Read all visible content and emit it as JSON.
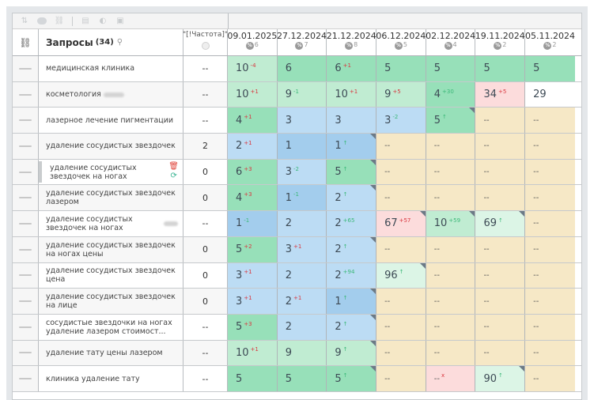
{
  "toolbar": {
    "icons": [
      "sort-icon",
      "toggle-icon",
      "link-icon",
      "calculator-icon",
      "contrast-icon",
      "image-icon"
    ]
  },
  "header": {
    "link_icon": "link-icon",
    "query_title": "Запросы",
    "query_count": "(34)",
    "search_icon": "search-icon",
    "freq_label": "\"[!Частота]\"",
    "freq_icon": "globe-icon",
    "dates": [
      {
        "date": "09.01.2025",
        "pct": "6"
      },
      {
        "date": "27.12.2024",
        "pct": "7"
      },
      {
        "date": "21.12.2024",
        "pct": "8"
      },
      {
        "date": "06.12.2024",
        "pct": "5"
      },
      {
        "date": "02.12.2024",
        "pct": "4"
      },
      {
        "date": "19.11.2024",
        "pct": "2"
      },
      {
        "date": "05.11.2024",
        "pct": "2"
      }
    ]
  },
  "rows": [
    {
      "query": "медицинская клиника",
      "freq": "--",
      "cells": [
        {
          "v": "10",
          "s": "-4",
          "t": "red",
          "bg": "g2"
        },
        {
          "v": "6",
          "s": "",
          "t": "",
          "bg": "g1"
        },
        {
          "v": "6",
          "s": "+1",
          "t": "red",
          "bg": "g1"
        },
        {
          "v": "5",
          "s": "",
          "t": "",
          "bg": "g1"
        },
        {
          "v": "5",
          "s": "",
          "t": "",
          "bg": "g1"
        },
        {
          "v": "5",
          "s": "",
          "t": "",
          "bg": "g1"
        },
        {
          "v": "5",
          "s": "",
          "t": "",
          "bg": "g1"
        }
      ]
    },
    {
      "query": "косметология",
      "blur": true,
      "freq": "--",
      "cells": [
        {
          "v": "10",
          "s": "+1",
          "t": "red",
          "bg": "g2"
        },
        {
          "v": "9",
          "s": "-1",
          "t": "green",
          "bg": "g2"
        },
        {
          "v": "10",
          "s": "+1",
          "t": "red",
          "bg": "g2"
        },
        {
          "v": "9",
          "s": "+5",
          "t": "red",
          "bg": "g2"
        },
        {
          "v": "4",
          "s": "+30",
          "t": "green",
          "bg": "g1"
        },
        {
          "v": "34",
          "s": "+5",
          "t": "red",
          "bg": "p"
        },
        {
          "v": "29",
          "s": "",
          "t": "",
          "bg": "w"
        }
      ]
    },
    {
      "query": "лазерное лечение пигментации",
      "freq": "--",
      "cells": [
        {
          "v": "4",
          "s": "+1",
          "t": "red",
          "bg": "g1"
        },
        {
          "v": "3",
          "s": "",
          "t": "",
          "bg": "b2"
        },
        {
          "v": "3",
          "s": "",
          "t": "",
          "bg": "b2"
        },
        {
          "v": "3",
          "s": "-2",
          "t": "green",
          "bg": "b2"
        },
        {
          "v": "5",
          "s": "↑",
          "t": "up",
          "bg": "g1",
          "corner": true
        },
        {
          "v": "--",
          "s": "",
          "t": "",
          "bg": "y"
        },
        {
          "v": "--",
          "s": "",
          "t": "",
          "bg": "y"
        }
      ]
    },
    {
      "query": "удаление сосудистых звездочек",
      "freq": "2",
      "cells": [
        {
          "v": "2",
          "s": "+1",
          "t": "red",
          "bg": "b2"
        },
        {
          "v": "1",
          "s": "",
          "t": "",
          "bg": "b1"
        },
        {
          "v": "1",
          "s": "↑",
          "t": "up",
          "bg": "b1",
          "corner": true
        },
        {
          "v": "--",
          "s": "",
          "t": "",
          "bg": "y"
        },
        {
          "v": "--",
          "s": "",
          "t": "",
          "bg": "y"
        },
        {
          "v": "--",
          "s": "",
          "t": "",
          "bg": "y"
        },
        {
          "v": "--",
          "s": "",
          "t": "",
          "bg": "y"
        }
      ]
    },
    {
      "query": "удаление сосудистых звездочек на ногах",
      "freq": "0",
      "selected": true,
      "cells": [
        {
          "v": "6",
          "s": "+3",
          "t": "red",
          "bg": "g1"
        },
        {
          "v": "3",
          "s": "-2",
          "t": "green",
          "bg": "b2"
        },
        {
          "v": "5",
          "s": "↑",
          "t": "up",
          "bg": "g1",
          "corner": true
        },
        {
          "v": "--",
          "s": "",
          "t": "",
          "bg": "y"
        },
        {
          "v": "--",
          "s": "",
          "t": "",
          "bg": "y"
        },
        {
          "v": "--",
          "s": "",
          "t": "",
          "bg": "y"
        },
        {
          "v": "--",
          "s": "",
          "t": "",
          "bg": "y"
        }
      ]
    },
    {
      "query": "удаление сосудистых звездочек лазером",
      "freq": "0",
      "cells": [
        {
          "v": "4",
          "s": "+3",
          "t": "red",
          "bg": "g1"
        },
        {
          "v": "1",
          "s": "-1",
          "t": "green",
          "bg": "b1"
        },
        {
          "v": "2",
          "s": "↑",
          "t": "up",
          "bg": "b2",
          "corner": true
        },
        {
          "v": "--",
          "s": "",
          "t": "",
          "bg": "y"
        },
        {
          "v": "--",
          "s": "",
          "t": "",
          "bg": "y"
        },
        {
          "v": "--",
          "s": "",
          "t": "",
          "bg": "y"
        },
        {
          "v": "--",
          "s": "",
          "t": "",
          "bg": "y"
        }
      ]
    },
    {
      "query": "удаление сосудистых звездочек на ногах",
      "blur": true,
      "freq": "--",
      "cells": [
        {
          "v": "1",
          "s": "-1",
          "t": "green",
          "bg": "b1"
        },
        {
          "v": "2",
          "s": "",
          "t": "",
          "bg": "b2"
        },
        {
          "v": "2",
          "s": "+65",
          "t": "green",
          "bg": "b2"
        },
        {
          "v": "67",
          "s": "+57",
          "t": "red",
          "bg": "p",
          "corner": true
        },
        {
          "v": "10",
          "s": "+59",
          "t": "green",
          "bg": "g2",
          "corner": true
        },
        {
          "v": "69",
          "s": "↑",
          "t": "up",
          "bg": "g3",
          "corner": true
        },
        {
          "v": "--",
          "s": "",
          "t": "",
          "bg": "y"
        }
      ]
    },
    {
      "query": "удаление сосудистых звездочек на ногах цены",
      "freq": "0",
      "cells": [
        {
          "v": "5",
          "s": "+2",
          "t": "red",
          "bg": "g1"
        },
        {
          "v": "3",
          "s": "+1",
          "t": "red",
          "bg": "b2"
        },
        {
          "v": "2",
          "s": "↑",
          "t": "up",
          "bg": "b2",
          "corner": true
        },
        {
          "v": "--",
          "s": "",
          "t": "",
          "bg": "y"
        },
        {
          "v": "--",
          "s": "",
          "t": "",
          "bg": "y"
        },
        {
          "v": "--",
          "s": "",
          "t": "",
          "bg": "y"
        },
        {
          "v": "--",
          "s": "",
          "t": "",
          "bg": "y"
        }
      ]
    },
    {
      "query": "удаление сосудистых звездочек цена",
      "freq": "0",
      "cells": [
        {
          "v": "3",
          "s": "+1",
          "t": "red",
          "bg": "b2"
        },
        {
          "v": "2",
          "s": "",
          "t": "",
          "bg": "b2"
        },
        {
          "v": "2",
          "s": "+94",
          "t": "green",
          "bg": "b2"
        },
        {
          "v": "96",
          "s": "↑",
          "t": "up",
          "bg": "g3",
          "corner": true
        },
        {
          "v": "--",
          "s": "",
          "t": "",
          "bg": "y"
        },
        {
          "v": "--",
          "s": "",
          "t": "",
          "bg": "y"
        },
        {
          "v": "--",
          "s": "",
          "t": "",
          "bg": "y"
        }
      ]
    },
    {
      "query": "удаление сосудистых звездочек на лице",
      "freq": "0",
      "cells": [
        {
          "v": "3",
          "s": "+1",
          "t": "red",
          "bg": "b2"
        },
        {
          "v": "2",
          "s": "+1",
          "t": "red",
          "bg": "b2"
        },
        {
          "v": "1",
          "s": "↑",
          "t": "up",
          "bg": "b1",
          "corner": true
        },
        {
          "v": "--",
          "s": "",
          "t": "",
          "bg": "y"
        },
        {
          "v": "--",
          "s": "",
          "t": "",
          "bg": "y"
        },
        {
          "v": "--",
          "s": "",
          "t": "",
          "bg": "y"
        },
        {
          "v": "--",
          "s": "",
          "t": "",
          "bg": "y"
        }
      ]
    },
    {
      "query": "сосудистые звездочки на ногах удаление лазером стоимост...",
      "freq": "--",
      "cells": [
        {
          "v": "5",
          "s": "+3",
          "t": "red",
          "bg": "g1"
        },
        {
          "v": "2",
          "s": "",
          "t": "",
          "bg": "b2"
        },
        {
          "v": "2",
          "s": "↑",
          "t": "up",
          "bg": "b2",
          "corner": true
        },
        {
          "v": "--",
          "s": "",
          "t": "",
          "bg": "y"
        },
        {
          "v": "--",
          "s": "",
          "t": "",
          "bg": "y"
        },
        {
          "v": "--",
          "s": "",
          "t": "",
          "bg": "y"
        },
        {
          "v": "--",
          "s": "",
          "t": "",
          "bg": "y"
        }
      ]
    },
    {
      "query": "удаление тату цены лазером",
      "freq": "--",
      "cells": [
        {
          "v": "10",
          "s": "+1",
          "t": "red",
          "bg": "g2"
        },
        {
          "v": "9",
          "s": "",
          "t": "",
          "bg": "g2"
        },
        {
          "v": "9",
          "s": "↑",
          "t": "up",
          "bg": "g2",
          "corner": true
        },
        {
          "v": "--",
          "s": "",
          "t": "",
          "bg": "y"
        },
        {
          "v": "--",
          "s": "",
          "t": "",
          "bg": "y"
        },
        {
          "v": "--",
          "s": "",
          "t": "",
          "bg": "y"
        },
        {
          "v": "--",
          "s": "",
          "t": "",
          "bg": "y"
        }
      ]
    },
    {
      "query": "клиника удаление тату",
      "freq": "--",
      "cells": [
        {
          "v": "5",
          "s": "",
          "t": "",
          "bg": "g1"
        },
        {
          "v": "5",
          "s": "",
          "t": "",
          "bg": "g1"
        },
        {
          "v": "5",
          "s": "↑",
          "t": "up",
          "bg": "g1",
          "corner": true
        },
        {
          "v": "--",
          "s": "",
          "t": "",
          "bg": "y"
        },
        {
          "v": "--",
          "s": "x",
          "t": "red",
          "bg": "p"
        },
        {
          "v": "90",
          "s": "↑",
          "t": "up",
          "bg": "g3",
          "corner": true
        },
        {
          "v": "--",
          "s": "",
          "t": "",
          "bg": "y"
        }
      ]
    }
  ],
  "colors": {
    "green_strong": "#97e0b9",
    "green_mid": "#c0ecd2",
    "green_light": "#dcf5e6",
    "blue_strong": "#a3cded",
    "blue_light": "#bcdcf4",
    "yellow": "#f6e8c6",
    "pink": "#fcdcdc",
    "delta_red": "#d9363e",
    "delta_green": "#3bb878"
  }
}
